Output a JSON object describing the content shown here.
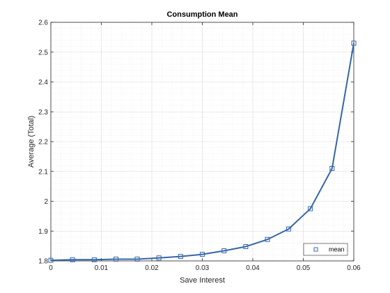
{
  "chart_data": {
    "type": "line",
    "title": "Consumption Mean",
    "xlabel": "Save Interest",
    "ylabel": "Average (Total)",
    "xlim": [
      0,
      0.06
    ],
    "ylim": [
      1.8,
      2.6
    ],
    "xticks": [
      0,
      0.01,
      0.02,
      0.03,
      0.04,
      0.05,
      0.06
    ],
    "xtick_labels": [
      "0",
      "0.01",
      "0.02",
      "0.03",
      "0.04",
      "0.05",
      "0.06"
    ],
    "yticks": [
      1.8,
      1.9,
      2.0,
      2.1,
      2.2,
      2.3,
      2.4,
      2.5,
      2.6
    ],
    "ytick_labels": [
      "1.8",
      "1.9",
      "2",
      "2.1",
      "2.2",
      "2.3",
      "2.4",
      "2.5",
      "2.6"
    ],
    "grid": "major and minor",
    "legend_position": "bottom-right",
    "series": [
      {
        "name": "mean",
        "color": "#3366aa",
        "marker": "square",
        "x": [
          0,
          0.0043,
          0.0086,
          0.0129,
          0.0171,
          0.0214,
          0.0257,
          0.03,
          0.0343,
          0.0386,
          0.0429,
          0.0471,
          0.0514,
          0.0557,
          0.06
        ],
        "y": [
          1.802,
          1.804,
          1.804,
          1.806,
          1.806,
          1.81,
          1.815,
          1.822,
          1.834,
          1.848,
          1.872,
          1.907,
          1.975,
          2.11,
          2.53
        ]
      }
    ]
  }
}
